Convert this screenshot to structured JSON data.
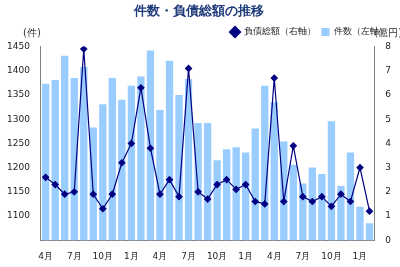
{
  "chart_data": {
    "type": "bar",
    "title": "件数・負債総額の推移",
    "categories": [
      "4月",
      null,
      null,
      "7月",
      null,
      null,
      "10月",
      null,
      null,
      "1月",
      null,
      null,
      "4月",
      null,
      null,
      "7月",
      null,
      null,
      "10月",
      null,
      null,
      "1月",
      null,
      null,
      "4月",
      null,
      null,
      "7月",
      null,
      null,
      "10月",
      null,
      null,
      "1月",
      null
    ],
    "series": [
      {
        "name": "件数（左軸）",
        "type": "bar",
        "color": "#99ccff",
        "values": [
          1373,
          1381,
          1431,
          1385,
          1408,
          1283,
          1331,
          1385,
          1340,
          1369,
          1388,
          1442,
          1319,
          1421,
          1350,
          1383,
          1292,
          1292,
          1215,
          1238,
          1242,
          1231,
          1281,
          1369,
          1335,
          1254,
          1206,
          1167,
          1200,
          1187,
          1296,
          1162,
          1231,
          1119,
          1085
        ]
      },
      {
        "name": "負債総額（右軸）",
        "type": "line",
        "axis": "y2",
        "color": "#000080",
        "marker": "diamond",
        "values": [
          2.6,
          2.3,
          1.9,
          2.0,
          7.9,
          1.9,
          1.3,
          1.9,
          3.2,
          4.0,
          6.3,
          3.8,
          1.9,
          2.5,
          1.8,
          7.1,
          2.0,
          1.7,
          2.3,
          2.5,
          2.1,
          2.3,
          1.6,
          1.5,
          6.7,
          1.6,
          3.9,
          1.8,
          1.6,
          1.8,
          1.4,
          1.9,
          1.6,
          3.0,
          1.2
        ]
      }
    ],
    "ylabel": "(件)",
    "y2label": "(億円)",
    "ylim": [
      1050,
      1450
    ],
    "yticks": [
      1100,
      1150,
      1200,
      1250,
      1300,
      1350,
      1400,
      1450
    ],
    "y2lim": [
      0,
      8
    ],
    "y2ticks": [
      0,
      1,
      2,
      3,
      4,
      5,
      6,
      7,
      8
    ],
    "grid": false,
    "legend": "upper right"
  }
}
